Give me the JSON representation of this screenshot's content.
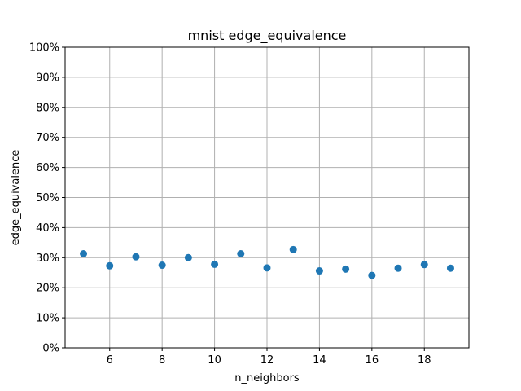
{
  "chart_data": {
    "type": "scatter",
    "title": "mnist edge_equivalence",
    "xlabel": "n_neighbors",
    "ylabel": "edge_equivalence",
    "x": [
      5,
      6,
      7,
      8,
      9,
      10,
      11,
      12,
      13,
      14,
      15,
      16,
      17,
      18,
      19
    ],
    "y": [
      0.313,
      0.273,
      0.303,
      0.275,
      0.3,
      0.278,
      0.313,
      0.266,
      0.327,
      0.256,
      0.262,
      0.241,
      0.265,
      0.277,
      0.265
    ],
    "xlim": [
      4.3,
      19.7
    ],
    "ylim": [
      0,
      1
    ],
    "xticks": [
      6,
      8,
      10,
      12,
      14,
      16,
      18
    ],
    "xtick_labels": [
      "6",
      "8",
      "10",
      "12",
      "14",
      "16",
      "18"
    ],
    "yticks": [
      0,
      0.1,
      0.2,
      0.3,
      0.4,
      0.5,
      0.6,
      0.7,
      0.8,
      0.9,
      1.0
    ],
    "ytick_labels": [
      "0%",
      "10%",
      "20%",
      "30%",
      "40%",
      "50%",
      "60%",
      "70%",
      "80%",
      "90%",
      "100%"
    ],
    "grid": true,
    "marker_color": "#1f77b4"
  }
}
